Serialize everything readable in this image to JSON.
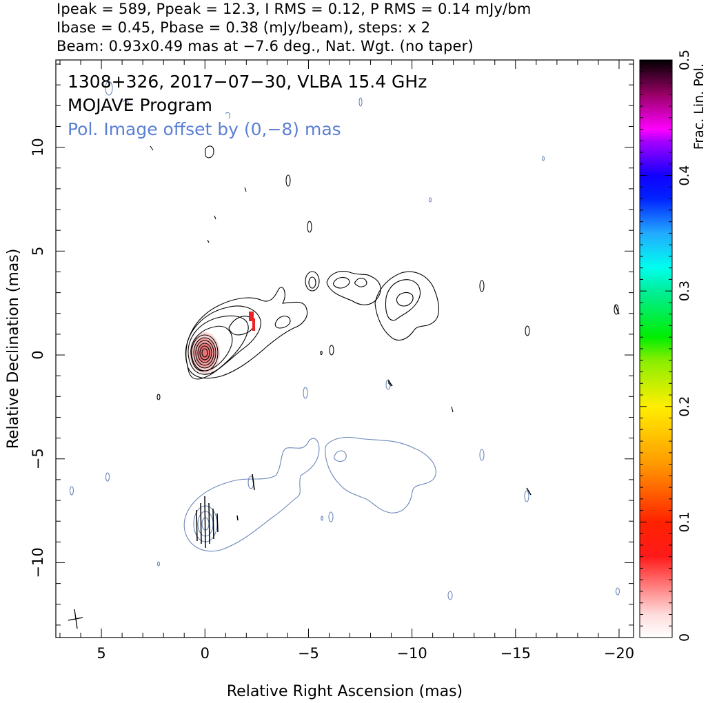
{
  "header": {
    "line1": "Ipeak = 589, Ppeak = 12.3, I RMS = 0.12, P RMS = 0.14 mJy/bm",
    "line2": "Ibase = 0.45, Pbase = 0.38 (mJy/beam), steps: x 2",
    "line3": "Beam: 0.93x0.49 mas at −7.6 deg., Nat. Wgt. (no taper)"
  },
  "annotations": {
    "source": "1308+326, 2017−07−30, VLBA 15.4 GHz",
    "program": "MOJAVE Program",
    "pol_offset": "Pol. Image offset by (0,−8) mas"
  },
  "colors": {
    "total_intensity_contour": "#000000",
    "polarization_contour": "#5577aa",
    "pol_annotation": "#5b7fd6",
    "core_color": "#f08a8a",
    "jet_pol_color": "#ee2222"
  },
  "chart_data": {
    "type": "heatmap",
    "xlabel": "Relative Right Ascension (mas)",
    "ylabel": "Relative Declination (mas)",
    "xlim": [
      7.2,
      -20.7
    ],
    "ylim": [
      -13.6,
      14.2
    ],
    "x_ticks": [
      5,
      0,
      -5,
      -10,
      -15,
      -20
    ],
    "x_tick_labels": [
      "5",
      "0",
      "−5",
      "−10",
      "−15",
      "−20"
    ],
    "y_ticks": [
      10,
      5,
      0,
      -5,
      -10
    ],
    "y_tick_labels": [
      "10",
      "5",
      "0",
      "−5",
      "−10"
    ],
    "colorbar": {
      "label": "Frac. Lin. Pol.",
      "range": [
        0,
        0.5
      ],
      "ticks": [
        0,
        0.1,
        0.2,
        0.3,
        0.4,
        0.5
      ],
      "tick_labels": [
        "0",
        "0.1",
        "0.2",
        "0.3",
        "0.4",
        "0.5"
      ]
    },
    "ipeak_mJy_per_beam": 589,
    "ppeak_mJy_per_beam": 12.3,
    "i_rms": 0.12,
    "p_rms": 0.14,
    "ibase": 0.45,
    "pbase": 0.38,
    "contour_step_factor": 2,
    "beam": {
      "major_mas": 0.93,
      "minor_mas": 0.49,
      "pa_deg": -7.6
    },
    "core": {
      "ra": 0,
      "dec": 0,
      "frac_pol": 0.06
    },
    "jet_pol_feature": {
      "ra": -2.3,
      "dec": 1.7,
      "frac_pol": 0.02
    },
    "pol_image_offset_mas": [
      0,
      -8
    ]
  }
}
